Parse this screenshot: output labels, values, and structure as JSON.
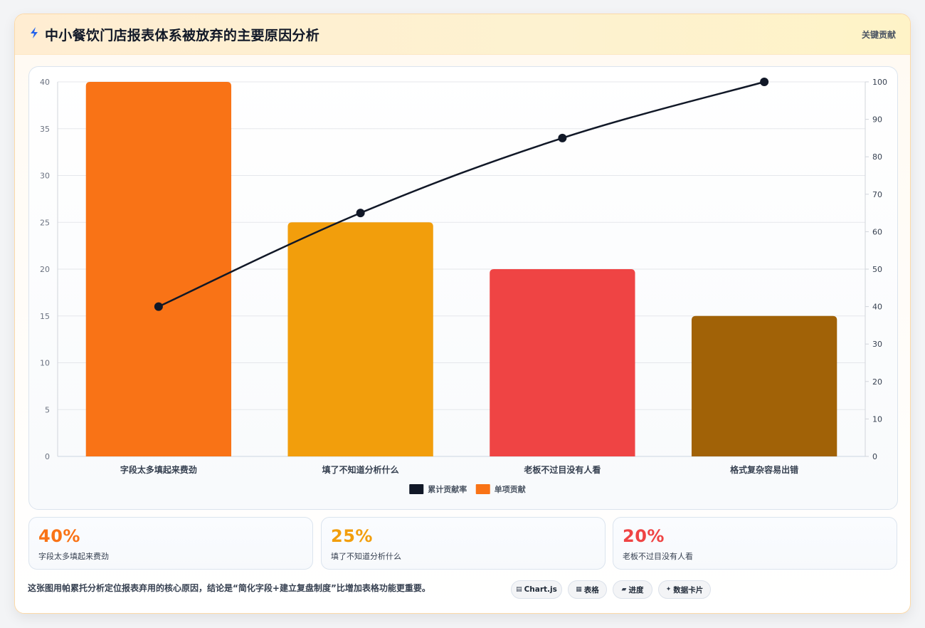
{
  "header": {
    "title": "中小餐饮门店报表体系被放弃的主要原因分析",
    "tag": "关键贡献",
    "icon": "lightning-icon"
  },
  "chart_data": {
    "type": "bar",
    "categories": [
      "字段太多填起来费劲",
      "填了不知道分析什么",
      "老板不过目没有人看",
      "格式复杂容易出错"
    ],
    "series": [
      {
        "name": "单项贡献",
        "type": "bar",
        "axis": "left",
        "values": [
          40,
          25,
          20,
          15
        ],
        "colors": [
          "#f97316",
          "#f29e0c",
          "#ef4444",
          "#a16207"
        ]
      },
      {
        "name": "累计贡献率",
        "type": "line",
        "axis": "right",
        "values": [
          40,
          65,
          85,
          100
        ],
        "color": "#111827"
      }
    ],
    "ylim": [
      0,
      40
    ],
    "y2lim": [
      0,
      100
    ],
    "yticks": [
      "0",
      "5",
      "10",
      "15",
      "20",
      "25",
      "30",
      "35",
      "40"
    ],
    "y2ticks": [
      "0",
      "10",
      "20",
      "30",
      "40",
      "50",
      "60",
      "70",
      "80",
      "90",
      "100"
    ],
    "legend": [
      {
        "name": "累计贡献率",
        "color": "#111827"
      },
      {
        "name": "单项贡献",
        "color": "#f97316"
      }
    ],
    "legend_position": "bottom",
    "grid": true
  },
  "stats": [
    {
      "value": "40%",
      "label": "字段太多填起来费劲",
      "color": "#f97316"
    },
    {
      "value": "25%",
      "label": "填了不知道分析什么",
      "color": "#f29e0c"
    },
    {
      "value": "20%",
      "label": "老板不过目没有人看",
      "color": "#ef4444"
    }
  ],
  "footer": {
    "conclusion": "这张图用帕累托分析定位报表弃用的核心原因，结论是“简化字段+建立复盘制度”比增加表格功能更重要。",
    "badges": [
      {
        "icon": "chart-icon",
        "glyph": "▤",
        "label": "Chart.js"
      },
      {
        "icon": "table-icon",
        "glyph": "▦",
        "label": "表格"
      },
      {
        "icon": "progress-icon",
        "glyph": "▰",
        "label": "进度"
      },
      {
        "icon": "sparkle-icon",
        "glyph": "✦",
        "label": "数据卡片"
      }
    ]
  }
}
